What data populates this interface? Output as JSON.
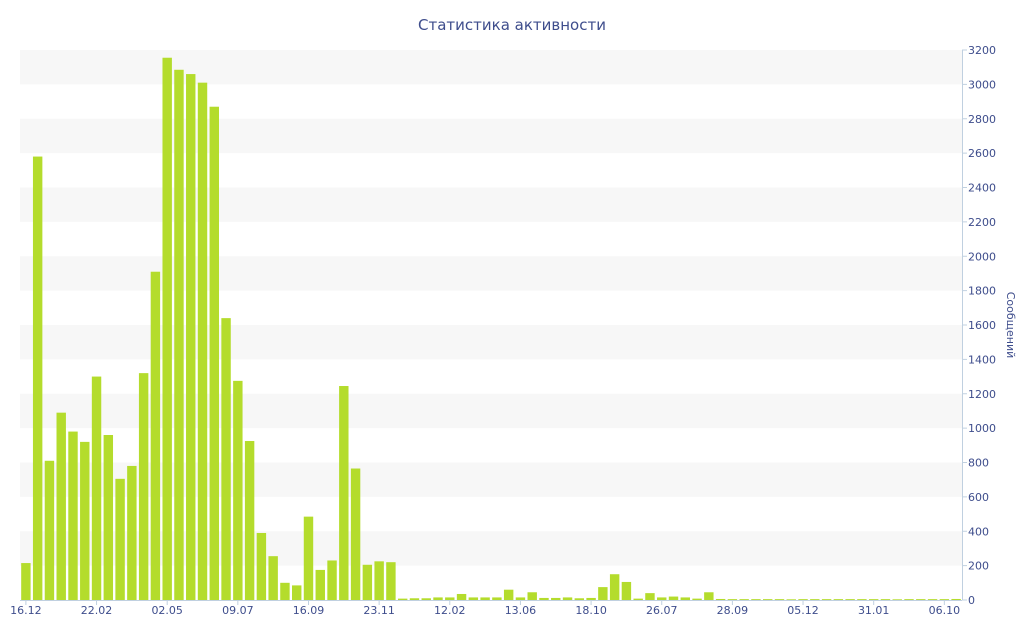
{
  "chart_data": {
    "type": "bar",
    "title": "Статистика активности",
    "xlabel": "",
    "ylabel": "Сообщений",
    "ylim": [
      0,
      3200
    ],
    "y_axis_side": "right",
    "grid": false,
    "alternating_bands": true,
    "legend": "none",
    "y_ticks": [
      0,
      200,
      400,
      600,
      800,
      1000,
      1200,
      1400,
      1600,
      1800,
      2000,
      2200,
      2400,
      2600,
      2800,
      3000,
      3200
    ],
    "categories": [
      "16.12",
      "",
      "",
      "",
      "",
      "",
      "22.02",
      "",
      "",
      "",
      "",
      "",
      "02.05",
      "",
      "",
      "",
      "",
      "",
      "09.07",
      "",
      "",
      "",
      "",
      "",
      "16.09",
      "",
      "",
      "",
      "",
      "",
      "23.11",
      "",
      "",
      "",
      "",
      "",
      "12.02",
      "",
      "",
      "",
      "",
      "",
      "13.06",
      "",
      "",
      "",
      "",
      "",
      "18.10",
      "",
      "",
      "",
      "",
      "",
      "26.07",
      "",
      "",
      "",
      "",
      "",
      "28.09",
      "",
      "",
      "",
      "",
      "",
      "05.12",
      "",
      "",
      "",
      "",
      "",
      "31.01",
      "",
      "",
      "",
      "",
      "",
      "06.10",
      ""
    ],
    "values": [
      215,
      2580,
      810,
      1090,
      980,
      920,
      1300,
      960,
      705,
      780,
      1320,
      1910,
      3155,
      3085,
      3060,
      3010,
      2870,
      1640,
      1275,
      925,
      390,
      255,
      100,
      85,
      485,
      175,
      230,
      1245,
      765,
      205,
      225,
      220,
      8,
      10,
      10,
      15,
      15,
      35,
      15,
      15,
      15,
      60,
      15,
      45,
      12,
      12,
      15,
      10,
      12,
      75,
      150,
      105,
      8,
      40,
      15,
      20,
      15,
      8,
      45,
      6,
      5,
      5,
      5,
      5,
      5,
      4,
      5,
      5,
      5,
      5,
      5,
      5,
      5,
      5,
      4,
      5,
      5,
      5,
      5,
      6
    ]
  },
  "colors": {
    "bar": "#b4dc2c",
    "text": "#3e4d8c",
    "band": "#f7f7f7",
    "axis": "#c0d0e0"
  }
}
